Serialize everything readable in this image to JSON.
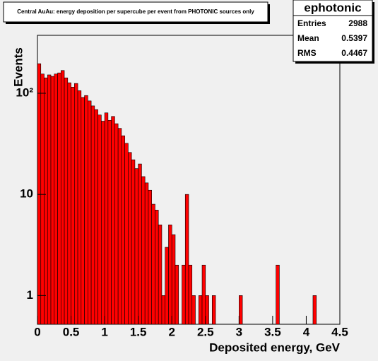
{
  "chart_data": {
    "type": "histogram",
    "title": "Central AuAu: energy deposition per supercube per event from PHOTONIC sources only",
    "xlabel": "Deposited energy, GeV",
    "ylabel": "Events",
    "color": "#ff0000",
    "log_y": true,
    "bins": [
      0,
      0.05,
      0.1,
      0.15,
      0.2,
      0.25,
      0.3,
      0.35,
      0.4,
      0.45,
      0.5,
      0.55,
      0.6,
      0.65,
      0.7,
      0.75,
      0.8,
      0.85,
      0.9,
      0.95,
      1,
      1.05,
      1.1,
      1.15,
      1.2,
      1.25,
      1.3,
      1.35,
      1.4,
      1.45,
      1.5,
      1.55,
      1.6,
      1.65,
      1.7,
      1.75,
      1.8,
      1.85,
      1.9,
      1.95,
      2,
      2.05,
      2.1,
      2.15,
      2.2,
      2.25,
      2.3,
      2.35,
      2.4,
      2.45,
      2.5,
      2.55,
      2.6,
      2.65,
      2.7,
      2.75,
      2.8,
      2.85,
      2.9,
      2.95,
      3,
      3.05,
      3.1,
      3.15,
      3.2,
      3.25,
      3.3,
      3.35,
      3.4,
      3.45,
      3.5,
      3.55,
      3.6,
      3.65,
      3.7,
      3.75,
      3.8,
      3.85,
      3.9,
      3.95,
      4,
      4.05,
      4.1,
      4.15,
      4.2,
      4.25,
      4.3,
      4.35,
      4.4,
      4.45,
      4.5
    ],
    "values": [
      196,
      155,
      142,
      152,
      147,
      155,
      159,
      168,
      142,
      127,
      115,
      125,
      106,
      91,
      95,
      84,
      75,
      69,
      61,
      53,
      64,
      54,
      59,
      50,
      45,
      38,
      32,
      26,
      22,
      18,
      20,
      15,
      13,
      11,
      8,
      7,
      5,
      1,
      3,
      5,
      4,
      2,
      0,
      2,
      10,
      2,
      1,
      0,
      1,
      2,
      1,
      0,
      1,
      0,
      0,
      0,
      0,
      0,
      0,
      0,
      1,
      0,
      0,
      0,
      0,
      0,
      0,
      0,
      0,
      0,
      0,
      2,
      0,
      0,
      0,
      0,
      0,
      0,
      0,
      0,
      0,
      0,
      1,
      0,
      0,
      0,
      0,
      0,
      0,
      0
    ],
    "xlim": [
      0,
      4.5
    ],
    "xticks": [
      0,
      0.5,
      1,
      1.5,
      2,
      2.5,
      3,
      3.5,
      4,
      4.5
    ],
    "ylim": [
      0.52,
      374
    ],
    "yticks": [
      1,
      10,
      {
        "value": 100,
        "label": "10²"
      }
    ],
    "stats": {
      "name": "ephotonic",
      "rows": [
        {
          "label": "Entries",
          "value": 2988
        },
        {
          "label": "Mean",
          "value": 0.5397
        },
        {
          "label": "RMS",
          "value": 0.4467
        }
      ]
    }
  }
}
